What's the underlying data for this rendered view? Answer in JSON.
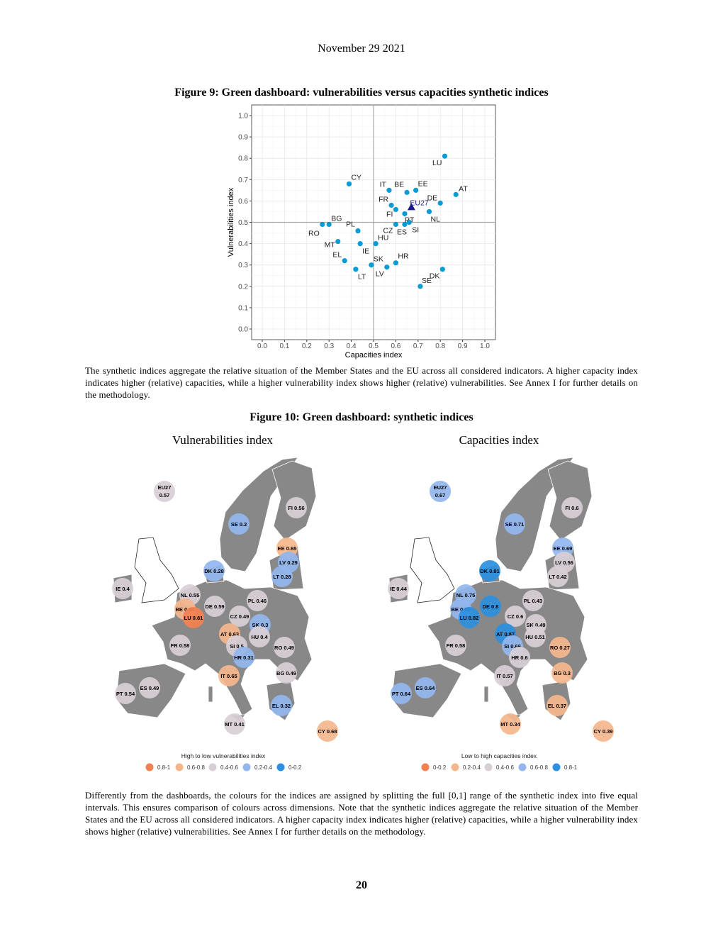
{
  "header": {
    "date": "November 29 2021"
  },
  "figure9": {
    "title": "Figure 9: Green dashboard: vulnerabilities versus capacities synthetic indices",
    "caption": "The synthetic indices aggregate the relative situation of the Member States and the EU across all considered indicators. A higher capacity index indicates higher (relative) capacities, while a higher vulnerability index shows higher (relative) vulnerabilities. See Annex I for further details on the methodology."
  },
  "chart_data": {
    "type": "scatter",
    "xlabel": "Capacities index",
    "ylabel": "Vulnerabilities index",
    "xlim": [
      0,
      1
    ],
    "ylim": [
      0,
      1
    ],
    "xticks": [
      "0.0",
      "0.1",
      "0.2",
      "0.3",
      "0.4",
      "0.5",
      "0.6",
      "0.7",
      "0.8",
      "0.9",
      "1.0"
    ],
    "yticks": [
      "0.0",
      "0.1",
      "0.2",
      "0.3",
      "0.4",
      "0.5",
      "0.6",
      "0.7",
      "0.8",
      "0.9",
      "1.0"
    ],
    "reference_lines": {
      "x": 0.5,
      "y": 0.5
    },
    "grid": true,
    "point_color": "#0b9bd3",
    "eu_color": "#1a1a8c",
    "points": [
      {
        "label": "AT",
        "x": 0.87,
        "y": 0.63
      },
      {
        "label": "BE",
        "x": 0.65,
        "y": 0.64
      },
      {
        "label": "BG",
        "x": 0.3,
        "y": 0.49
      },
      {
        "label": "CY",
        "x": 0.39,
        "y": 0.68
      },
      {
        "label": "CZ",
        "x": 0.6,
        "y": 0.49
      },
      {
        "label": "DE",
        "x": 0.8,
        "y": 0.59
      },
      {
        "label": "DK",
        "x": 0.81,
        "y": 0.28
      },
      {
        "label": "EE",
        "x": 0.69,
        "y": 0.65
      },
      {
        "label": "EL",
        "x": 0.37,
        "y": 0.32
      },
      {
        "label": "ES",
        "x": 0.64,
        "y": 0.49
      },
      {
        "label": "FI",
        "x": 0.6,
        "y": 0.56
      },
      {
        "label": "FR",
        "x": 0.58,
        "y": 0.58
      },
      {
        "label": "HR",
        "x": 0.6,
        "y": 0.31
      },
      {
        "label": "HU",
        "x": 0.51,
        "y": 0.4
      },
      {
        "label": "IE",
        "x": 0.44,
        "y": 0.4
      },
      {
        "label": "IT",
        "x": 0.57,
        "y": 0.65
      },
      {
        "label": "LT",
        "x": 0.42,
        "y": 0.28
      },
      {
        "label": "LU",
        "x": 0.82,
        "y": 0.81
      },
      {
        "label": "LV",
        "x": 0.56,
        "y": 0.29
      },
      {
        "label": "MT",
        "x": 0.34,
        "y": 0.41
      },
      {
        "label": "NL",
        "x": 0.75,
        "y": 0.55
      },
      {
        "label": "PL",
        "x": 0.43,
        "y": 0.46
      },
      {
        "label": "PT",
        "x": 0.64,
        "y": 0.54
      },
      {
        "label": "RO",
        "x": 0.27,
        "y": 0.49
      },
      {
        "label": "SE",
        "x": 0.71,
        "y": 0.2
      },
      {
        "label": "SI",
        "x": 0.66,
        "y": 0.5
      },
      {
        "label": "SK",
        "x": 0.49,
        "y": 0.3
      }
    ],
    "eu_point": {
      "label": "EU27",
      "x": 0.67,
      "y": 0.57
    }
  },
  "figure10": {
    "title": "Figure 10: Green dashboard: synthetic indices",
    "vulnerabilities_map": {
      "title": "Vulnerabilities index",
      "legend_title": "High to low vulnerabilities index",
      "legend": [
        {
          "label": "0.8-1",
          "color": "#f4804f"
        },
        {
          "label": "0.6-0.8",
          "color": "#f5b68c"
        },
        {
          "label": "0.4-0.6",
          "color": "#d8cfd6"
        },
        {
          "label": "0.2-0.4",
          "color": "#93b6ee"
        },
        {
          "label": "0-0.2",
          "color": "#2d8fe0"
        }
      ],
      "values": {
        "EU27": "0.57",
        "FI": "0.56",
        "SE": "0.2",
        "EE": "0.65",
        "LV": "0.29",
        "LT": "0.28",
        "DK": "0.28",
        "IE": "0.4",
        "NL": "0.55",
        "DE": "0.59",
        "PL": "0.46",
        "BE": "0.64",
        "LU": "0.81",
        "CZ": "0.49",
        "SK": "0.3",
        "AT": "0.63",
        "HU": "0.4",
        "SI": "0.5",
        "FR": "0.58",
        "RO": "0.49",
        "HR": "0.31",
        "BG": "0.49",
        "IT": "0.65",
        "ES": "0.49",
        "PT": "0.54",
        "EL": "0.32",
        "MT": "0.41",
        "CY": "0.68"
      }
    },
    "capacities_map": {
      "title": "Capacities index",
      "legend_title": "Low to high capacities index",
      "legend": [
        {
          "label": "0-0.2",
          "color": "#f4804f"
        },
        {
          "label": "0.2-0.4",
          "color": "#f5b68c"
        },
        {
          "label": "0.4-0.6",
          "color": "#d8cfd6"
        },
        {
          "label": "0.6-0.8",
          "color": "#93b6ee"
        },
        {
          "label": "0.8-1",
          "color": "#2d8fe0"
        }
      ],
      "values": {
        "EU27": "0.67",
        "FI": "0.6",
        "SE": "0.71",
        "EE": "0.69",
        "LV": "0.56",
        "LT": "0.42",
        "DK": "0.81",
        "IE": "0.44",
        "NL": "0.75",
        "DE": "0.8",
        "PL": "0.43",
        "BE": "0.65",
        "LU": "0.82",
        "CZ": "0.6",
        "SK": "0.49",
        "AT": "0.87",
        "HU": "0.51",
        "SI": "0.66",
        "FR": "0.58",
        "RO": "0.27",
        "HR": "0.6",
        "BG": "0.3",
        "IT": "0.57",
        "ES": "0.64",
        "PT": "0.64",
        "EL": "0.37",
        "MT": "0.34",
        "CY": "0.39"
      }
    },
    "caption": "Differently from the dashboards, the colours for the indices are assigned by splitting the full [0,1] range of the synthetic index into five equal intervals. This ensures comparison of colours across dimensions. Note that the synthetic indices aggregate the relative situation of the Member States and the EU across all considered indicators. A higher capacity index indicates higher (relative) capacities, while a higher vulnerability index shows higher (relative) vulnerabilities. See Annex I for further details on the methodology."
  },
  "footer": {
    "page_number": "20"
  }
}
